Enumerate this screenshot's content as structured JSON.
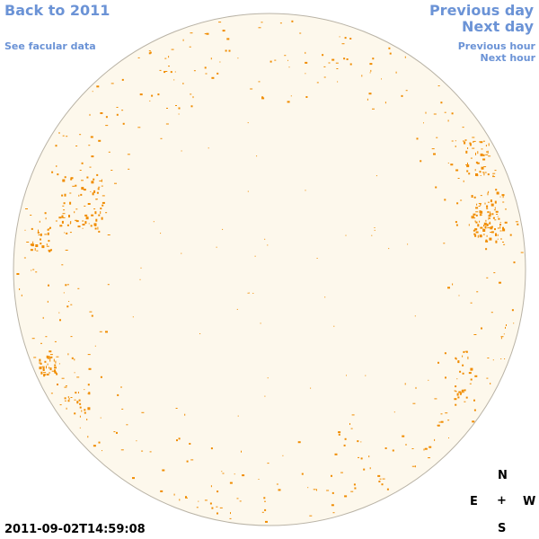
{
  "nav": {
    "back": "Back to 2011",
    "facular": "See facular data",
    "previous_day": "Previous day",
    "next_day": "Next day",
    "previous_hour": "Previous hour",
    "next_hour": "Next hour"
  },
  "timestamp": "2011-09-02T14:59:08",
  "compass": {
    "north": "N",
    "east": "E",
    "center": "+",
    "west": "W",
    "south": "S"
  },
  "colors": {
    "link": "#6b93d6",
    "disk_fill": "#fdf8ec",
    "disk_outline": "#b9b3a6",
    "facula": "#f08c00"
  }
}
